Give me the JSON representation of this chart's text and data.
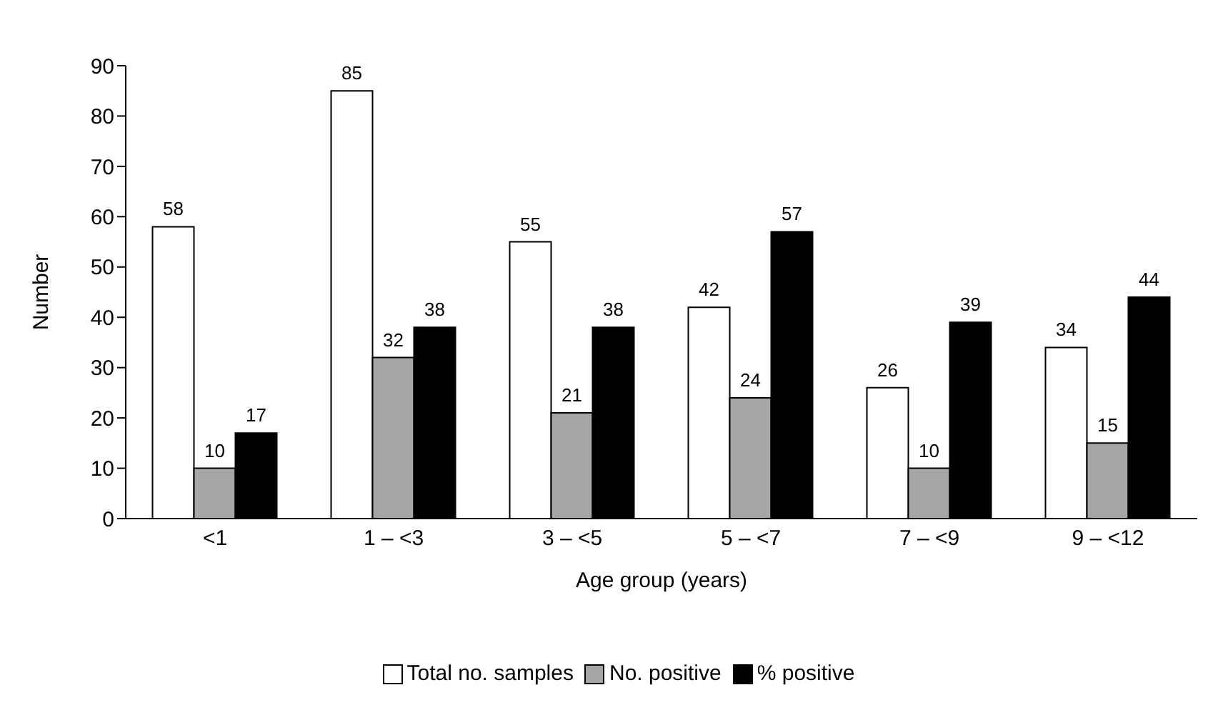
{
  "chart_data": {
    "type": "bar",
    "xlabel": "Age group (years)",
    "ylabel": "Number",
    "categories": [
      "<1",
      "1 – <3",
      "3 – <5",
      "5 – <7",
      "7 – <9",
      "9 – <12"
    ],
    "series": [
      {
        "name": "Total no. samples",
        "color": "#ffffff",
        "values": [
          58,
          85,
          55,
          42,
          26,
          34
        ]
      },
      {
        "name": "No. positive",
        "color": "#a6a6a6",
        "values": [
          10,
          32,
          21,
          24,
          10,
          15
        ]
      },
      {
        "name": "% positive",
        "color": "#000000",
        "values": [
          17,
          38,
          38,
          57,
          39,
          44
        ]
      }
    ],
    "ylim": [
      0,
      90
    ],
    "yticks": [
      0,
      10,
      20,
      30,
      40,
      50,
      60,
      70,
      80,
      90
    ],
    "data_labels": true,
    "legend": "bottom",
    "grid": false
  }
}
